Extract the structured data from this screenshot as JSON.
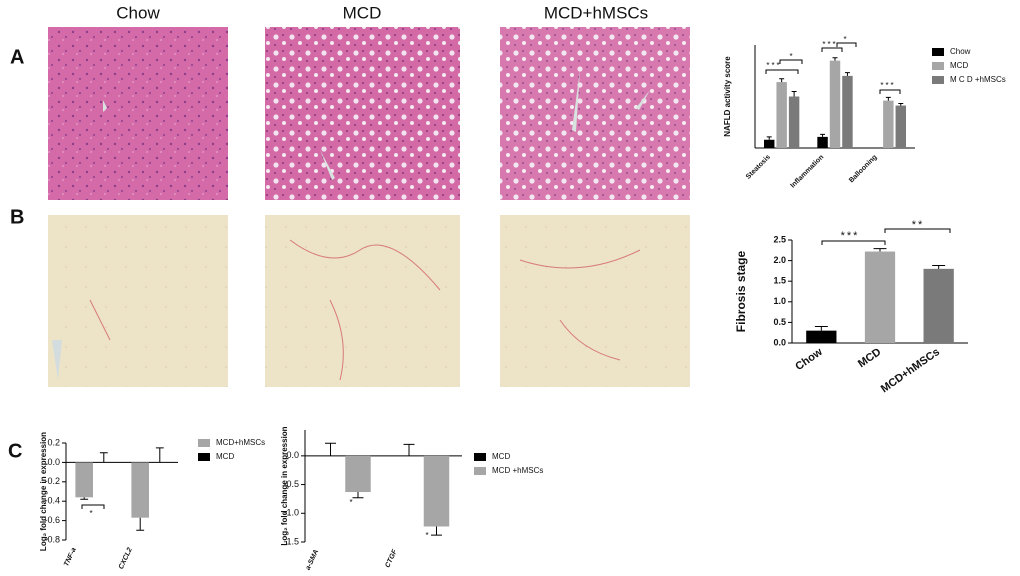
{
  "panel_labels": [
    "A",
    "B",
    "C"
  ],
  "image_headers": [
    "Chow",
    "MCD",
    "MCD+hMSCs"
  ],
  "chart_data": [
    {
      "type": "bar",
      "ylabel": "NAFLD activity score",
      "categories": [
        "Steatosis",
        "Inflammation",
        "Ballooning"
      ],
      "series": [
        {
          "name": "Chow",
          "color": "#000000",
          "values": [
            0.2,
            0.27,
            0
          ],
          "errors": [
            0.07,
            0.06,
            0
          ]
        },
        {
          "name": "MCD",
          "color": "#a6a6a6",
          "values": [
            1.6,
            2.12,
            1.15
          ],
          "errors": [
            0.08,
            0.07,
            0.08
          ]
        },
        {
          "name": "M C D +hMSCs",
          "color": "#7a7a7a",
          "values": [
            1.25,
            1.75,
            1.03
          ],
          "errors": [
            0.12,
            0.08,
            0.05
          ]
        }
      ],
      "ylim": [
        0,
        2.5
      ],
      "annotations": [
        "***",
        "*",
        "***",
        "*",
        "***"
      ]
    },
    {
      "type": "bar",
      "ylabel": "Fibrosis stage",
      "categories": [
        "Chow",
        "MCD",
        "MCD+hMSCs"
      ],
      "series": [
        {
          "colors": [
            "#000000",
            "#a6a6a6",
            "#7a7a7a"
          ],
          "values": [
            0.3,
            2.22,
            1.8
          ],
          "errors": [
            0.1,
            0.07,
            0.08
          ]
        }
      ],
      "ylim": [
        0,
        2.5
      ],
      "yticks": [
        {
          "value": 0,
          "label": "0.0"
        },
        0.5,
        {
          "value": 1,
          "label": "1.0"
        },
        1.5,
        {
          "value": 2,
          "label": "2.0"
        },
        2.5
      ],
      "annotations": [
        "***",
        "**"
      ]
    },
    {
      "type": "bar",
      "ylabel": "Log₂ fold change in expression",
      "categories": [
        "TNF-a",
        "CXCL2"
      ],
      "series": [
        {
          "name": "MCD+hMSCs",
          "color": "#a6a6a6",
          "values": [
            -0.36,
            -0.57
          ],
          "errors": [
            0.02,
            0.13
          ]
        },
        {
          "name": "MCD",
          "color": "#000000",
          "values": [
            0,
            0
          ],
          "errors": [
            0.1,
            0.15
          ]
        }
      ],
      "ylim": [
        -0.8,
        0.2
      ],
      "yticks": [
        0.2,
        {
          "value": 0,
          "label": "0.0"
        },
        -0.2,
        -0.4,
        -0.6,
        -0.8
      ],
      "annotations": [
        "*"
      ]
    },
    {
      "type": "bar",
      "ylabel": "Log₂ fold change in expression",
      "categories": [
        "a-SMA",
        "CTGF"
      ],
      "series": [
        {
          "name": "MCD",
          "color": "#000000",
          "values": [
            0,
            0
          ],
          "errors": [
            0.22,
            0.2
          ]
        },
        {
          "name": "MCD +hMSCs",
          "color": "#a6a6a6",
          "values": [
            -0.63,
            -1.23
          ],
          "errors": [
            0.1,
            0.15
          ]
        }
      ],
      "ylim": [
        -1.5,
        0.45
      ],
      "yticks": [
        {
          "value": 0,
          "label": "0.0"
        },
        -0.5,
        {
          "value": -1,
          "label": "-1.0"
        },
        -1.5
      ],
      "annotations": [
        "*",
        "*"
      ]
    }
  ]
}
